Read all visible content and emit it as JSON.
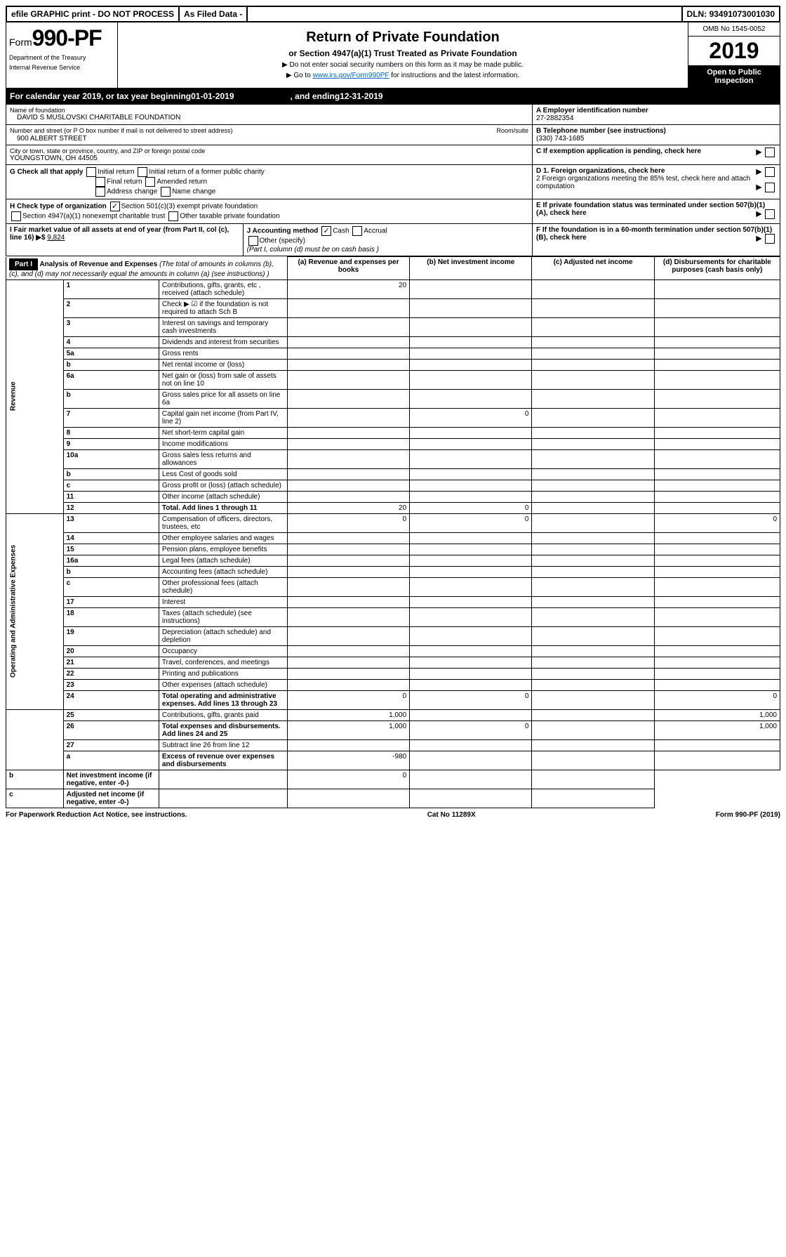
{
  "topbar": {
    "efile": "efile GRAPHIC print - DO NOT PROCESS",
    "asfiled": "As Filed Data -",
    "dln_label": "DLN:",
    "dln": "93491073001030"
  },
  "header": {
    "form": "Form",
    "form_no": "990-PF",
    "dept1": "Department of the Treasury",
    "dept2": "Internal Revenue Service",
    "title": "Return of Private Foundation",
    "subtitle": "or Section 4947(a)(1) Trust Treated as Private Foundation",
    "instr1": "▶ Do not enter social security numbers on this form as it may be made public.",
    "instr2_pre": "▶ Go to ",
    "instr2_link": "www.irs.gov/Form990PF",
    "instr2_post": " for instructions and the latest information.",
    "omb": "OMB No 1545-0052",
    "year": "2019",
    "open": "Open to Public Inspection"
  },
  "cal": {
    "text_pre": "For calendar year 2019, or tax year beginning ",
    "begin": "01-01-2019",
    "mid": " , and ending ",
    "end": "12-31-2019"
  },
  "info": {
    "name_label": "Name of foundation",
    "name": "DAVID S MUSLOVSKI CHARITABLE FOUNDATION",
    "addr_label": "Number and street (or P O  box number if mail is not delivered to street address)",
    "addr": "900 ALBERT STREET",
    "room_label": "Room/suite",
    "city_label": "City or town, state or province, country, and ZIP or foreign postal code",
    "city": "YOUNGSTOWN, OH  44505",
    "a_label": "A Employer identification number",
    "ein": "27-2882354",
    "b_label": "B Telephone number (see instructions)",
    "phone": "(330) 743-1685",
    "c_label": "C If exemption application is pending, check here",
    "g_label": "G Check all that apply",
    "g_opts": [
      "Initial return",
      "Initial return of a former public charity",
      "Final return",
      "Amended return",
      "Address change",
      "Name change"
    ],
    "d1": "D 1. Foreign organizations, check here",
    "d2": "2 Foreign organizations meeting the 85% test, check here and attach computation",
    "e": "E If private foundation status was terminated under section 507(b)(1)(A), check here",
    "h_label": "H Check type of organization",
    "h1": "Section 501(c)(3) exempt private foundation",
    "h2": "Section 4947(a)(1) nonexempt charitable trust",
    "h3": "Other taxable private foundation",
    "i_label": "I Fair market value of all assets at end of year (from Part II, col  (c), line 16)",
    "i_val": "9,824",
    "j_label": "J Accounting method",
    "j_cash": "Cash",
    "j_accrual": "Accrual",
    "j_other": "Other (specify)",
    "j_note": "(Part I, column (d) must be on cash basis )",
    "f": "F If the foundation is in a 60-month termination under section 507(b)(1)(B), check here"
  },
  "part1": {
    "label": "Part I",
    "title": "Analysis of Revenue and Expenses",
    "title_note": "(The total of amounts in columns (b), (c), and (d) may not necessarily equal the amounts in column (a) (see instructions) )",
    "col_a": "(a) Revenue and expenses per books",
    "col_b": "(b) Net investment income",
    "col_c": "(c) Adjusted net income",
    "col_d": "(d) Disbursements for charitable purposes (cash basis only)"
  },
  "sections": {
    "revenue": "Revenue",
    "expenses": "Operating and Administrative Expenses"
  },
  "rows": [
    {
      "n": "1",
      "d": "Contributions, gifts, grants, etc , received (attach schedule)",
      "a": "20"
    },
    {
      "n": "2",
      "d": "Check ▶ ☑ if the foundation is not required to attach Sch B"
    },
    {
      "n": "3",
      "d": "Interest on savings and temporary cash investments"
    },
    {
      "n": "4",
      "d": "Dividends and interest from securities"
    },
    {
      "n": "5a",
      "d": "Gross rents"
    },
    {
      "n": "b",
      "d": "Net rental income or (loss)"
    },
    {
      "n": "6a",
      "d": "Net gain or (loss) from sale of assets not on line 10"
    },
    {
      "n": "b",
      "d": "Gross sales price for all assets on line 6a"
    },
    {
      "n": "7",
      "d": "Capital gain net income (from Part IV, line 2)",
      "b": "0"
    },
    {
      "n": "8",
      "d": "Net short-term capital gain"
    },
    {
      "n": "9",
      "d": "Income modifications"
    },
    {
      "n": "10a",
      "d": "Gross sales less returns and allowances"
    },
    {
      "n": "b",
      "d": "Less  Cost of goods sold"
    },
    {
      "n": "c",
      "d": "Gross profit or (loss) (attach schedule)"
    },
    {
      "n": "11",
      "d": "Other income (attach schedule)"
    },
    {
      "n": "12",
      "d": "Total. Add lines 1 through 11",
      "bold": true,
      "a": "20",
      "b": "0"
    },
    {
      "n": "13",
      "d": "Compensation of officers, directors, trustees, etc",
      "a": "0",
      "b": "0",
      "dd": "0"
    },
    {
      "n": "14",
      "d": "Other employee salaries and wages"
    },
    {
      "n": "15",
      "d": "Pension plans, employee benefits"
    },
    {
      "n": "16a",
      "d": "Legal fees (attach schedule)"
    },
    {
      "n": "b",
      "d": "Accounting fees (attach schedule)"
    },
    {
      "n": "c",
      "d": "Other professional fees (attach schedule)"
    },
    {
      "n": "17",
      "d": "Interest"
    },
    {
      "n": "18",
      "d": "Taxes (attach schedule) (see instructions)"
    },
    {
      "n": "19",
      "d": "Depreciation (attach schedule) and depletion"
    },
    {
      "n": "20",
      "d": "Occupancy"
    },
    {
      "n": "21",
      "d": "Travel, conferences, and meetings"
    },
    {
      "n": "22",
      "d": "Printing and publications"
    },
    {
      "n": "23",
      "d": "Other expenses (attach schedule)"
    },
    {
      "n": "24",
      "d": "Total operating and administrative expenses. Add lines 13 through 23",
      "bold": true,
      "a": "0",
      "b": "0",
      "dd": "0"
    },
    {
      "n": "25",
      "d": "Contributions, gifts, grants paid",
      "a": "1,000",
      "dd": "1,000"
    },
    {
      "n": "26",
      "d": "Total expenses and disbursements. Add lines 24 and 25",
      "bold": true,
      "a": "1,000",
      "b": "0",
      "dd": "1,000"
    },
    {
      "n": "27",
      "d": "Subtract line 26 from line 12"
    },
    {
      "n": "a",
      "d": "Excess of revenue over expenses and disbursements",
      "bold": true,
      "a": "-980"
    },
    {
      "n": "b",
      "d": "Net investment income (if negative, enter -0-)",
      "bold": true,
      "b": "0"
    },
    {
      "n": "c",
      "d": "Adjusted net income (if negative, enter -0-)",
      "bold": true
    }
  ],
  "footer": {
    "left": "For Paperwork Reduction Act Notice, see instructions.",
    "mid": "Cat  No  11289X",
    "right": "Form 990-PF (2019)"
  }
}
